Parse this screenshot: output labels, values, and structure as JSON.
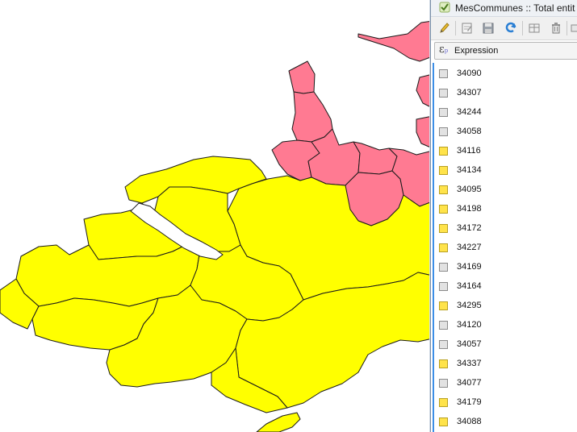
{
  "window": {
    "title": "MesCommunes :: Total entit"
  },
  "toolbar": {
    "icons": [
      "pencil-icon",
      "edit-icon",
      "save-icon",
      "refresh-icon",
      "new-field-icon",
      "delete-icon",
      "more-icon"
    ]
  },
  "expression_button": {
    "label": "Expression"
  },
  "colors": {
    "selected": "#ffff00",
    "highlighted": "#ff7a92",
    "checkbox_selected": "#ffe34a",
    "checkbox_unselected": "#e2e2e2",
    "accent": "#3c8ee6"
  },
  "features": [
    {
      "id": "34090",
      "selected": false
    },
    {
      "id": "34307",
      "selected": false
    },
    {
      "id": "34244",
      "selected": false
    },
    {
      "id": "34058",
      "selected": false
    },
    {
      "id": "34116",
      "selected": true
    },
    {
      "id": "34134",
      "selected": true
    },
    {
      "id": "34095",
      "selected": true
    },
    {
      "id": "34198",
      "selected": true
    },
    {
      "id": "34172",
      "selected": true
    },
    {
      "id": "34227",
      "selected": true
    },
    {
      "id": "34169",
      "selected": false
    },
    {
      "id": "34164",
      "selected": false
    },
    {
      "id": "34295",
      "selected": true
    },
    {
      "id": "34120",
      "selected": false
    },
    {
      "id": "34057",
      "selected": false
    },
    {
      "id": "34337",
      "selected": true
    },
    {
      "id": "34077",
      "selected": false
    },
    {
      "id": "34179",
      "selected": true
    },
    {
      "id": "34088",
      "selected": true
    }
  ]
}
